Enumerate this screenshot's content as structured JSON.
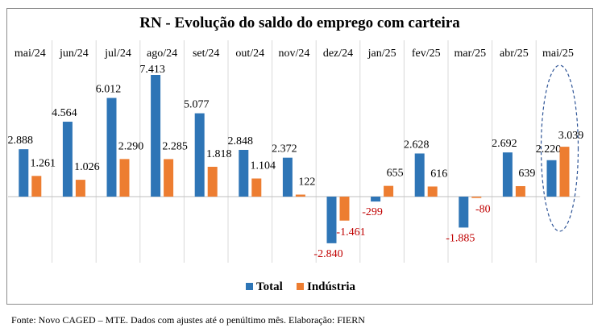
{
  "chart_data": {
    "type": "bar",
    "title": "RN - Evolução do saldo do emprego com carteira",
    "categories": [
      "mai/24",
      "jun/24",
      "jul/24",
      "ago/24",
      "set/24",
      "out/24",
      "nov/24",
      "dez/24",
      "jan/25",
      "fev/25",
      "mar/25",
      "abr/25",
      "mai/25"
    ],
    "series": [
      {
        "name": "Total",
        "color": "#2e75b6",
        "values": [
          2888,
          4564,
          6012,
          7413,
          5077,
          2848,
          2372,
          -2840,
          -299,
          2628,
          -1885,
          2692,
          2220
        ],
        "labels": [
          "2.888",
          "4.564",
          "6.012",
          "7.413",
          "5.077",
          "2.848",
          "2.372",
          "-2.840",
          "-299",
          "2.628",
          "-1.885",
          "2.692",
          "2.220"
        ]
      },
      {
        "name": "Indústria",
        "color": "#ed7d31",
        "values": [
          1261,
          1026,
          2290,
          2285,
          1818,
          1104,
          122,
          -1461,
          655,
          616,
          -80,
          639,
          3039
        ],
        "labels": [
          "1.261",
          "1.026",
          "2.290",
          "2.285",
          "1.818",
          "1.104",
          "122",
          "-1.461",
          "655",
          "616",
          "-80",
          "639",
          "3.039"
        ]
      }
    ],
    "highlight_category": "mai/25",
    "legend_position": "bottom",
    "negative_label_color": "#c00000"
  },
  "source": "Fonte: Novo CAGED – MTE. Dados com ajustes até o penúltimo mês. Elaboração: FIERN"
}
